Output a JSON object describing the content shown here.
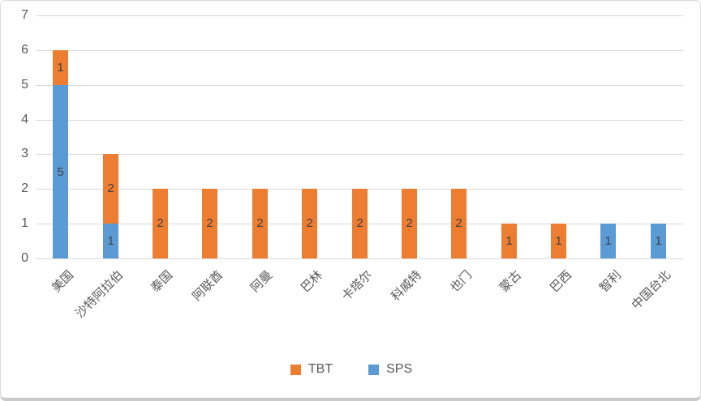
{
  "chart_data": {
    "type": "bar",
    "subtype": "stacked-vertical",
    "title": "",
    "xlabel": "",
    "ylabel": "",
    "categories": [
      "美国",
      "沙特阿拉伯",
      "泰国",
      "阿联酋",
      "阿曼",
      "巴林",
      "卡塔尔",
      "科威特",
      "也门",
      "蒙古",
      "巴西",
      "智利",
      "中国台北"
    ],
    "series": [
      {
        "name": "SPS",
        "color": "#5b9bd5",
        "stack_position": "bottom",
        "values": [
          5,
          1,
          0,
          0,
          0,
          0,
          0,
          0,
          0,
          0,
          0,
          1,
          1
        ]
      },
      {
        "name": "TBT",
        "color": "#ed7d31",
        "stack_position": "top",
        "values": [
          1,
          2,
          2,
          2,
          2,
          2,
          2,
          2,
          2,
          1,
          1,
          0,
          0
        ]
      }
    ],
    "totals": [
      6,
      3,
      2,
      2,
      2,
      2,
      2,
      2,
      2,
      1,
      1,
      1,
      1
    ],
    "y_ticks": [
      0,
      1,
      2,
      3,
      4,
      5,
      6,
      7
    ],
    "ylim": [
      0,
      7
    ],
    "grid": true,
    "data_labels": "inside-center",
    "legend": {
      "position": "bottom",
      "items": [
        {
          "label": "TBT",
          "color": "#ed7d31"
        },
        {
          "label": "SPS",
          "color": "#5b9bd5"
        }
      ]
    },
    "colors": {
      "gridline": "#d9d9d9",
      "axis_text": "#595959",
      "data_label_text": "#404040",
      "background": "#ffffff",
      "frame_border": "#d9d9d9"
    }
  }
}
